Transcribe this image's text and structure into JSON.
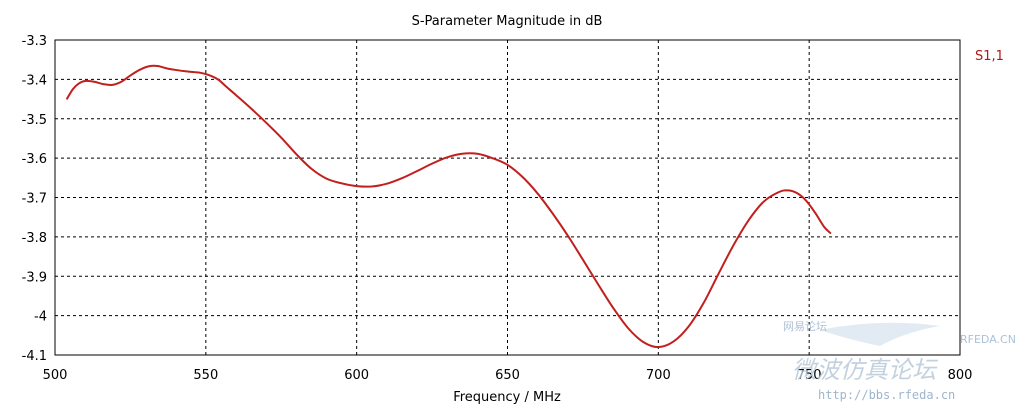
{
  "chart_data": {
    "type": "line",
    "title": "S-Parameter Magnitude in dB",
    "xlabel": "Frequency / MHz",
    "ylabel": "",
    "xlim": [
      500,
      800
    ],
    "ylim": [
      -4.1,
      -3.3
    ],
    "xticks": [
      500,
      550,
      600,
      650,
      700,
      750,
      800
    ],
    "yticks": [
      -3.3,
      -3.4,
      -3.5,
      -3.6,
      -3.7,
      -3.8,
      -3.9,
      -4,
      -4.1
    ],
    "xtick_labels": [
      "500",
      "550",
      "600",
      "650",
      "700",
      "750",
      "800"
    ],
    "ytick_labels": [
      "-3.3",
      "-3.4",
      "-3.5",
      "-3.6",
      "-3.7",
      "-3.8",
      "-3.9",
      "-4",
      "-4.1"
    ],
    "grid": true,
    "legend_position": "right",
    "series": [
      {
        "name": "S1,1",
        "color": "#c0201e",
        "x": [
          504,
          506,
          508,
          510,
          513,
          516,
          519,
          522,
          525,
          528,
          531,
          534,
          537,
          540,
          544,
          548,
          551,
          554,
          557,
          560,
          565,
          570,
          575,
          580,
          585,
          590,
          595,
          600,
          605,
          610,
          615,
          620,
          625,
          630,
          635,
          640,
          645,
          650,
          655,
          660,
          665,
          670,
          675,
          680,
          685,
          690,
          695,
          700,
          705,
          710,
          715,
          720,
          725,
          730,
          735,
          740,
          743,
          746,
          749,
          752,
          755,
          757
        ],
        "y": [
          -3.449,
          -3.424,
          -3.41,
          -3.404,
          -3.406,
          -3.412,
          -3.414,
          -3.406,
          -3.39,
          -3.376,
          -3.367,
          -3.366,
          -3.372,
          -3.376,
          -3.38,
          -3.383,
          -3.389,
          -3.4,
          -3.42,
          -3.44,
          -3.474,
          -3.51,
          -3.548,
          -3.59,
          -3.627,
          -3.652,
          -3.664,
          -3.671,
          -3.672,
          -3.665,
          -3.651,
          -3.633,
          -3.614,
          -3.598,
          -3.589,
          -3.589,
          -3.6,
          -3.617,
          -3.648,
          -3.69,
          -3.741,
          -3.797,
          -3.858,
          -3.92,
          -3.98,
          -4.032,
          -4.067,
          -4.08,
          -4.066,
          -4.028,
          -3.968,
          -3.893,
          -3.82,
          -3.757,
          -3.71,
          -3.686,
          -3.682,
          -3.689,
          -3.708,
          -3.739,
          -3.775,
          -3.79
        ]
      }
    ]
  },
  "watermark": {
    "site": "RFEDA.CN",
    "tagline": "网易论坛",
    "forum_name": "微波仿真论坛",
    "url": "http://bbs.rfeda.cn"
  }
}
